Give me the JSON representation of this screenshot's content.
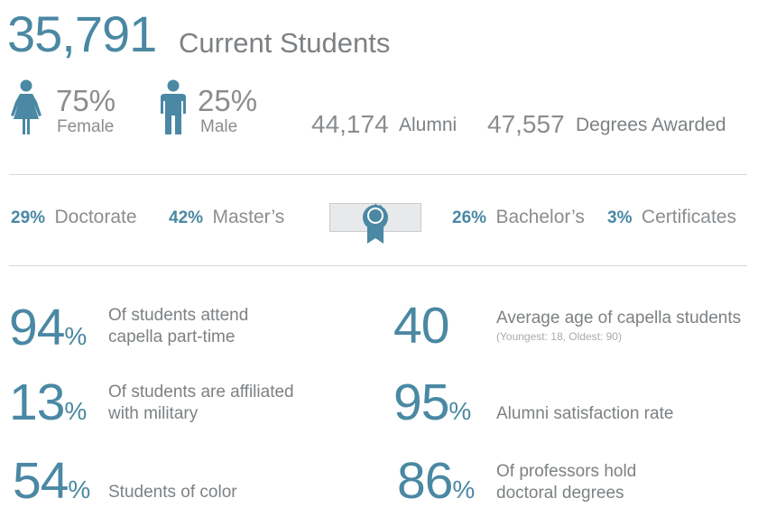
{
  "header": {
    "total": "35,791",
    "title": "Current Students"
  },
  "gender": {
    "female": {
      "percent": "75%",
      "label": "Female",
      "icon": "female-person-icon"
    },
    "male": {
      "percent": "25%",
      "label": "Male",
      "icon": "male-person-icon"
    }
  },
  "alumni": {
    "number": "44,174",
    "label": "Alumni"
  },
  "degrees_awarded": {
    "number": "47,557",
    "label": "Degrees Awarded"
  },
  "degree_mix": [
    {
      "percent": "29%",
      "label": "Doctorate"
    },
    {
      "percent": "42%",
      "label": "Master’s"
    },
    {
      "percent": "26%",
      "label": "Bachelor’s"
    },
    {
      "percent": "3%",
      "label": "Certificates"
    }
  ],
  "badge_icon": "award-ribbon-icon",
  "facts": [
    {
      "number": "94",
      "unit": "%",
      "text": [
        "Of students attend",
        "capella part-time"
      ],
      "sub": ""
    },
    {
      "number": "40",
      "unit": "",
      "text": [
        "Average age of capella students"
      ],
      "sub": "(Youngest: 18, Oldest: 90)"
    },
    {
      "number": "13",
      "unit": "%",
      "text": [
        "Of students are affiliated",
        "with military"
      ],
      "sub": ""
    },
    {
      "number": "95",
      "unit": "%",
      "text": [
        "Alumni satisfaction rate"
      ],
      "sub": ""
    },
    {
      "number": "54",
      "unit": "%",
      "text": [
        "Students of color"
      ],
      "sub": ""
    },
    {
      "number": "86",
      "unit": "%",
      "text": [
        "Of professors hold",
        "doctoral degrees"
      ],
      "sub": ""
    }
  ],
  "colors": {
    "accent": "#4a88a3",
    "text": "#8a8d90",
    "rule": "#d6d8da",
    "badge_bg": "#e8e9ea"
  }
}
